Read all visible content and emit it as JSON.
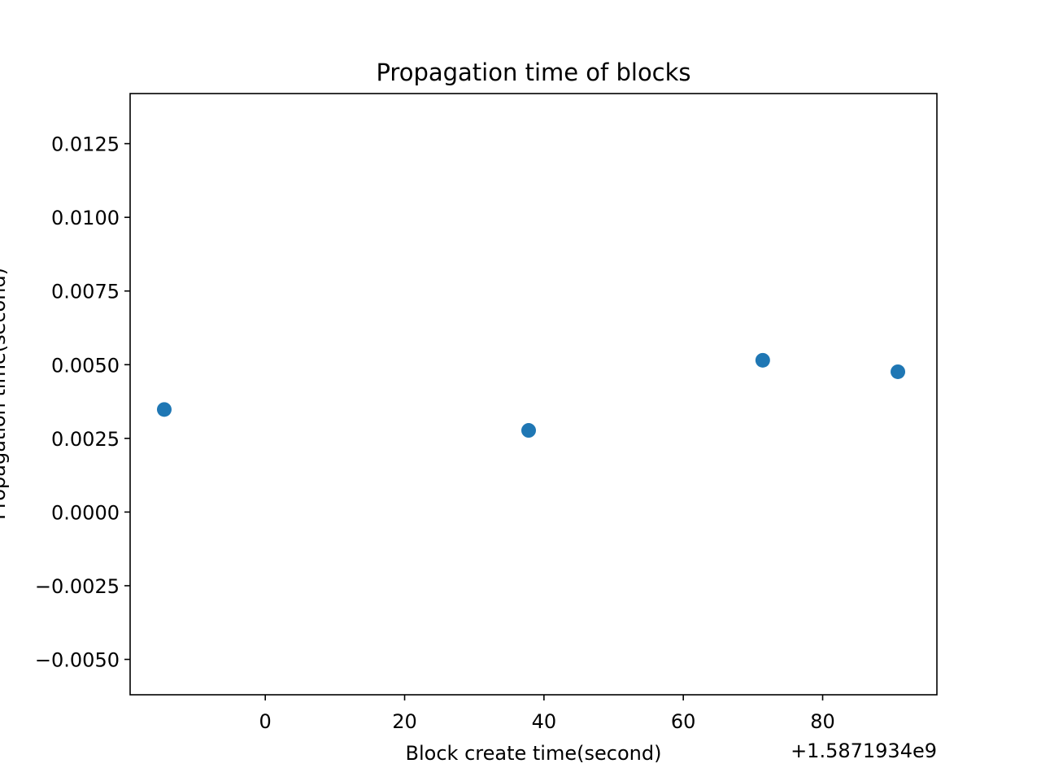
{
  "chart_data": {
    "type": "scatter",
    "title": "Propagation time of blocks",
    "xlabel": "Block create time(second)",
    "ylabel": "Propagation time(second)",
    "x_offset_label": "+1.5871934e9",
    "xlim": [
      -19.4,
      96.4
    ],
    "ylim": [
      -0.0062,
      0.0142
    ],
    "x_ticks": [
      0,
      20,
      40,
      60,
      80
    ],
    "x_tick_labels": [
      "0",
      "20",
      "40",
      "60",
      "80"
    ],
    "y_ticks": [
      -0.005,
      -0.0025,
      0.0,
      0.0025,
      0.005,
      0.0075,
      0.01,
      0.0125
    ],
    "y_tick_labels": [
      "−0.0050",
      "−0.0025",
      "0.0000",
      "0.0025",
      "0.0050",
      "0.0075",
      "0.0100",
      "0.0125"
    ],
    "grid": false,
    "series": [
      {
        "color": "#1f77b4",
        "points": [
          {
            "x": -14.5,
            "y": 0.00348
          },
          {
            "x": 37.8,
            "y": 0.00277
          },
          {
            "x": 71.4,
            "y": 0.00515
          },
          {
            "x": 90.8,
            "y": 0.00476
          }
        ]
      }
    ]
  }
}
